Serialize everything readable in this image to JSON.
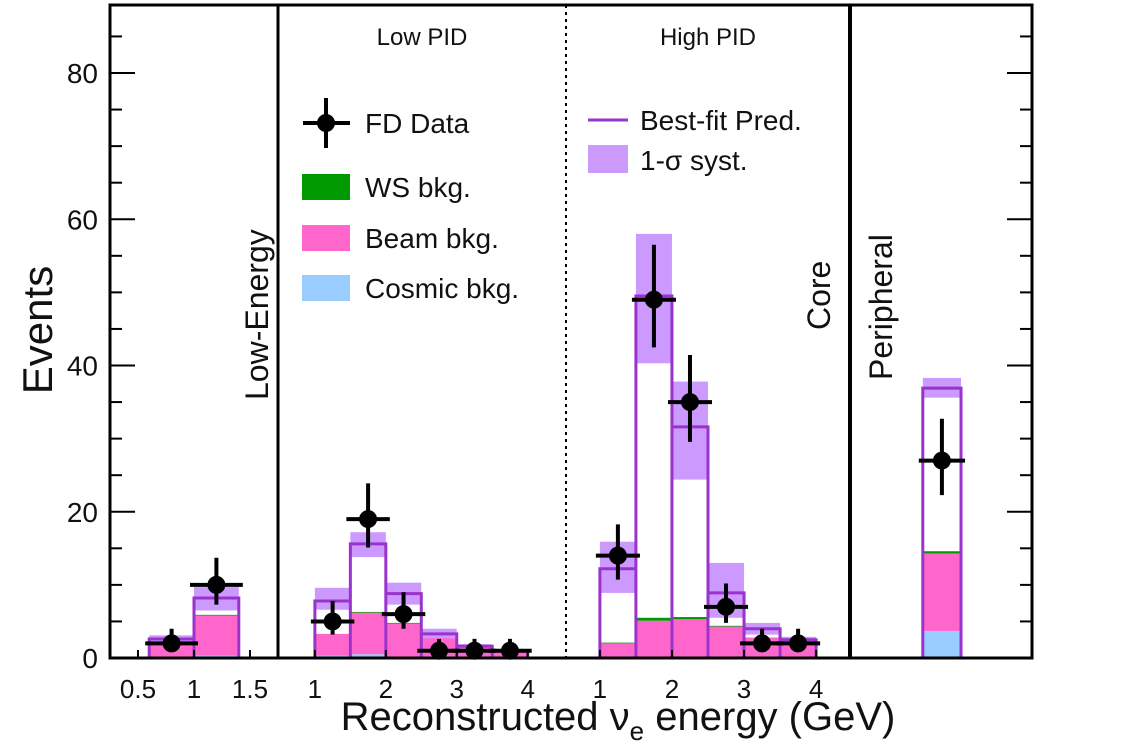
{
  "chart_data": {
    "type": "bar",
    "title": "",
    "xlabel": "Reconstructed νe energy (GeV)",
    "xlabel_main": "Reconstructed ",
    "xlabel_nu": "ν",
    "xlabel_sub": "e",
    "xlabel_tail": " energy (GeV)",
    "ylabel": "Events",
    "ylim": [
      0,
      80
    ],
    "yticks": [
      0,
      20,
      40,
      60,
      80
    ],
    "colors": {
      "pred": "#9933cc",
      "syst": "#cc99ff",
      "ws": "#009900",
      "beam": "#ff66cc",
      "cosmic": "#99ccff",
      "data": "#000000"
    },
    "legend": {
      "data": "FD Data",
      "ws": "WS bkg.",
      "beam": "Beam bkg.",
      "cosmic": "Cosmic bkg.",
      "pred": "Best-fit Pred.",
      "syst": "1-σ syst."
    },
    "panels": [
      {
        "name": "Low-Energy",
        "label": "Low-Energy",
        "erange": [
          0.25,
          1.75
        ],
        "ticks": [
          "0.5",
          "1",
          "1.5"
        ],
        "tick_values": [
          0.5,
          1.0,
          1.5
        ],
        "bins": [
          [
            0.6,
            1.0
          ],
          [
            1.0,
            1.4
          ]
        ],
        "pred": [
          2.6,
          8.2
        ],
        "syst_lo": [
          2.2,
          6.5
        ],
        "syst_hi": [
          3.1,
          9.7
        ],
        "cosmic": [
          0.2,
          0.3
        ],
        "beam": [
          2.0,
          5.5
        ],
        "ws": [
          0.0,
          0.1
        ],
        "data": [
          2,
          10
        ]
      },
      {
        "name": "Low PID",
        "label": "Low PID",
        "erange": [
          0.48,
          4.54
        ],
        "ticks": [
          "1",
          "2",
          "3",
          "4"
        ],
        "tick_values": [
          1,
          2,
          3,
          4
        ],
        "bins": [
          [
            1.0,
            1.5
          ],
          [
            1.5,
            2.0
          ],
          [
            2.0,
            2.5
          ],
          [
            2.5,
            3.0
          ],
          [
            3.0,
            3.5
          ],
          [
            3.5,
            4.0
          ]
        ],
        "pred": [
          7.8,
          15.6,
          8.8,
          3.3,
          1.6,
          1.0
        ],
        "syst_lo": [
          6.6,
          13.8,
          7.3,
          2.6,
          1.2,
          0.8
        ],
        "syst_hi": [
          9.6,
          17.2,
          10.3,
          4.0,
          1.9,
          1.2
        ],
        "cosmic": [
          0.3,
          0.5,
          0.2,
          0.2,
          0.1,
          0.1
        ],
        "beam": [
          3.0,
          5.7,
          4.5,
          2.5,
          1.5,
          1.0
        ],
        "ws": [
          0.0,
          0.1,
          0.1,
          0.0,
          0.0,
          0.0
        ],
        "data": [
          5,
          19,
          6,
          1,
          1,
          1
        ]
      },
      {
        "name": "High PID",
        "label": "High PID",
        "sublabel": "Core",
        "erange": [
          0.53,
          4.47
        ],
        "ticks": [
          "1",
          "2",
          "3",
          "4"
        ],
        "tick_values": [
          1,
          2,
          3,
          4
        ],
        "bins": [
          [
            1.0,
            1.5
          ],
          [
            1.5,
            2.0
          ],
          [
            2.0,
            2.5
          ],
          [
            2.5,
            3.0
          ],
          [
            3.0,
            3.5
          ],
          [
            3.5,
            4.0
          ]
        ],
        "pred": [
          12.2,
          49.5,
          31.6,
          8.9,
          4.0,
          2.5
        ],
        "syst_lo": [
          8.9,
          40.3,
          24.4,
          5.5,
          3.2,
          2.1
        ],
        "syst_hi": [
          15.9,
          58.0,
          37.8,
          13.0,
          4.8,
          2.9
        ],
        "cosmic": [
          0.1,
          0.1,
          0.1,
          0.1,
          0.1,
          0.1
        ],
        "beam": [
          1.9,
          5.0,
          5.2,
          4.2,
          2.7,
          1.9
        ],
        "ws": [
          0.1,
          0.4,
          0.3,
          0.1,
          0.0,
          0.0
        ],
        "data": [
          14,
          49,
          35,
          7,
          2,
          2
        ]
      },
      {
        "name": "Peripheral",
        "label": "Peripheral",
        "erange": [
          0,
          1
        ],
        "ticks": [],
        "tick_values": [],
        "bins": [
          [
            0.4,
            0.61
          ]
        ],
        "pred": [
          36.9
        ],
        "syst_lo": [
          35.6
        ],
        "syst_hi": [
          38.3
        ],
        "cosmic": [
          3.7
        ],
        "beam": [
          10.6
        ],
        "ws": [
          0.3
        ],
        "data": [
          27
        ]
      }
    ]
  }
}
